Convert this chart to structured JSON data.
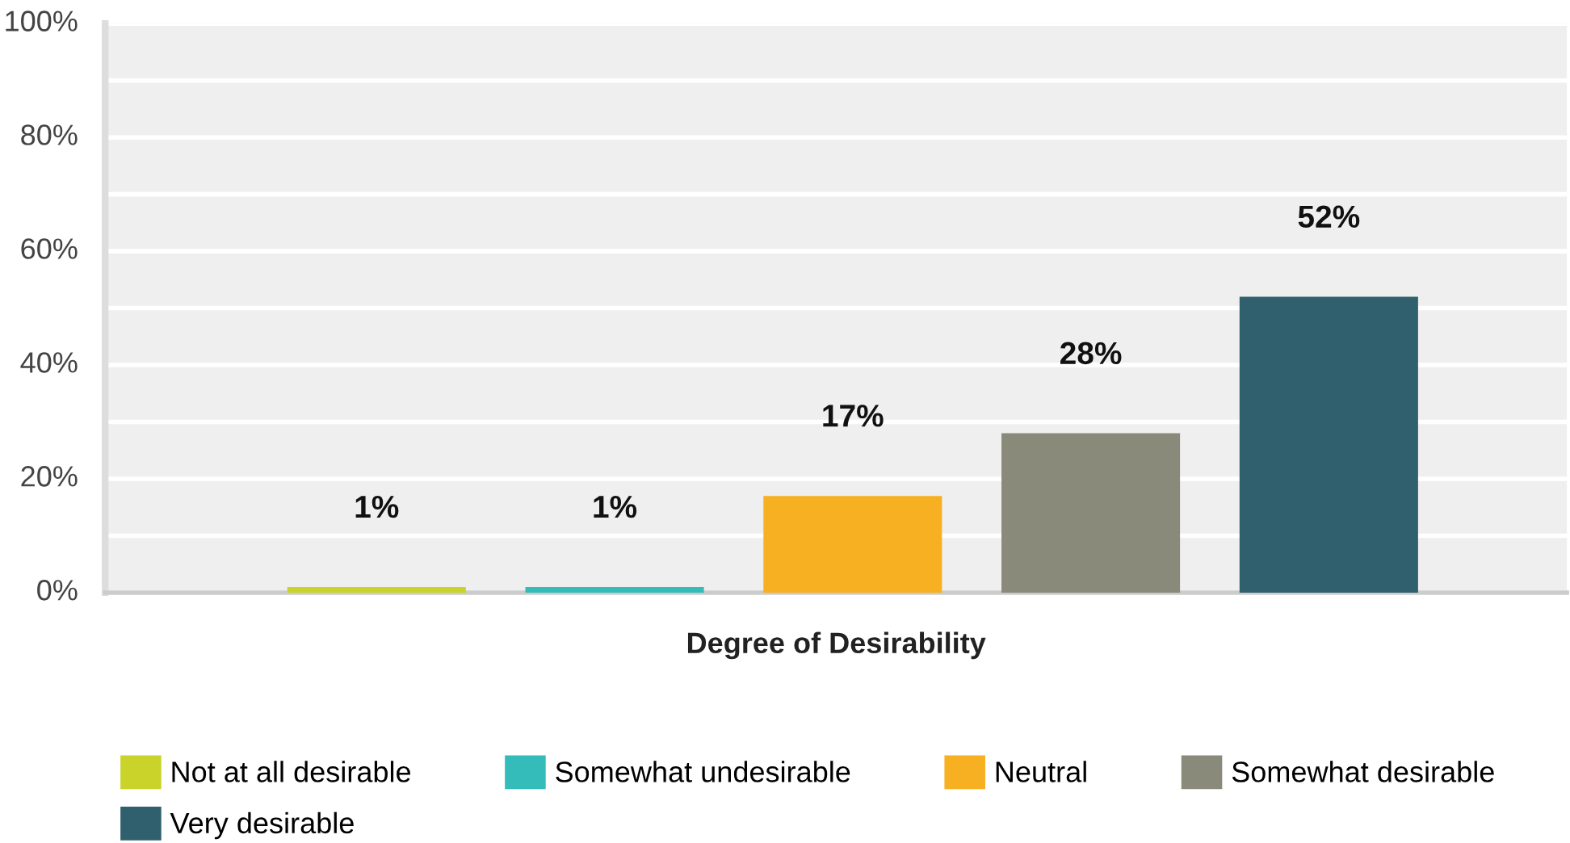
{
  "chart_data": {
    "type": "bar",
    "xlabel": "Degree of Desirability",
    "categories": [
      null,
      null,
      null,
      null,
      null
    ],
    "stacked": true,
    "series": [
      {
        "name": "Not at all desirable",
        "color": "#c9d32a",
        "values": [
          1,
          null,
          null,
          null,
          null
        ],
        "value_labels": [
          "1%",
          null,
          null,
          null,
          null
        ]
      },
      {
        "name": "Somewhat undesirable",
        "color": "#33bcb9",
        "values": [
          null,
          1,
          null,
          null,
          null
        ],
        "value_labels": [
          null,
          "1%",
          null,
          null,
          null
        ]
      },
      {
        "name": "Neutral",
        "color": "#f6b021",
        "values": [
          null,
          null,
          17,
          null,
          null
        ],
        "value_labels": [
          null,
          null,
          "17%",
          null,
          null
        ]
      },
      {
        "name": "Somewhat desirable",
        "color": "#8a8a7a",
        "values": [
          null,
          null,
          null,
          28,
          null
        ],
        "value_labels": [
          null,
          null,
          null,
          "28%",
          null
        ]
      },
      {
        "name": "Very desirable",
        "color": "#30606d",
        "values": [
          null,
          null,
          null,
          null,
          52
        ],
        "value_labels": [
          null,
          null,
          null,
          null,
          "52%"
        ]
      }
    ],
    "ylim": [
      0,
      100
    ],
    "yticks": [
      {
        "value": 0,
        "label": "0%"
      },
      {
        "value": 10,
        "label": null
      },
      {
        "value": 20,
        "label": "20%"
      },
      {
        "value": 30,
        "label": null
      },
      {
        "value": 40,
        "label": "40%"
      },
      {
        "value": 50,
        "label": null
      },
      {
        "value": 60,
        "label": "60%"
      },
      {
        "value": 70,
        "label": null
      },
      {
        "value": 80,
        "label": "80%"
      },
      {
        "value": 90,
        "label": null
      },
      {
        "value": 100,
        "label": "100%"
      }
    ],
    "grid": "y",
    "legend": "bottom"
  }
}
